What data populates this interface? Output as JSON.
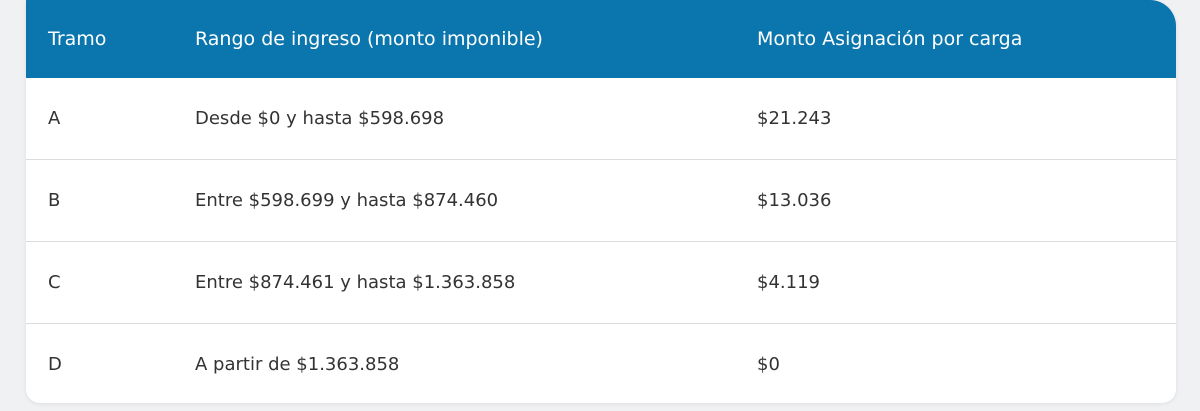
{
  "table": {
    "columns": [
      "Tramo",
      "Rango de ingreso (monto imponible)",
      "Monto Asignación por carga"
    ],
    "rows": [
      [
        "A",
        "Desde $0 y hasta $598.698",
        "$21.243"
      ],
      [
        "B",
        "Entre $598.699 y hasta $874.460",
        "$13.036"
      ],
      [
        "C",
        "Entre $874.461 y hasta $1.363.858",
        "$4.119"
      ],
      [
        "D",
        "A partir de $1.363.858",
        "$0"
      ]
    ]
  }
}
